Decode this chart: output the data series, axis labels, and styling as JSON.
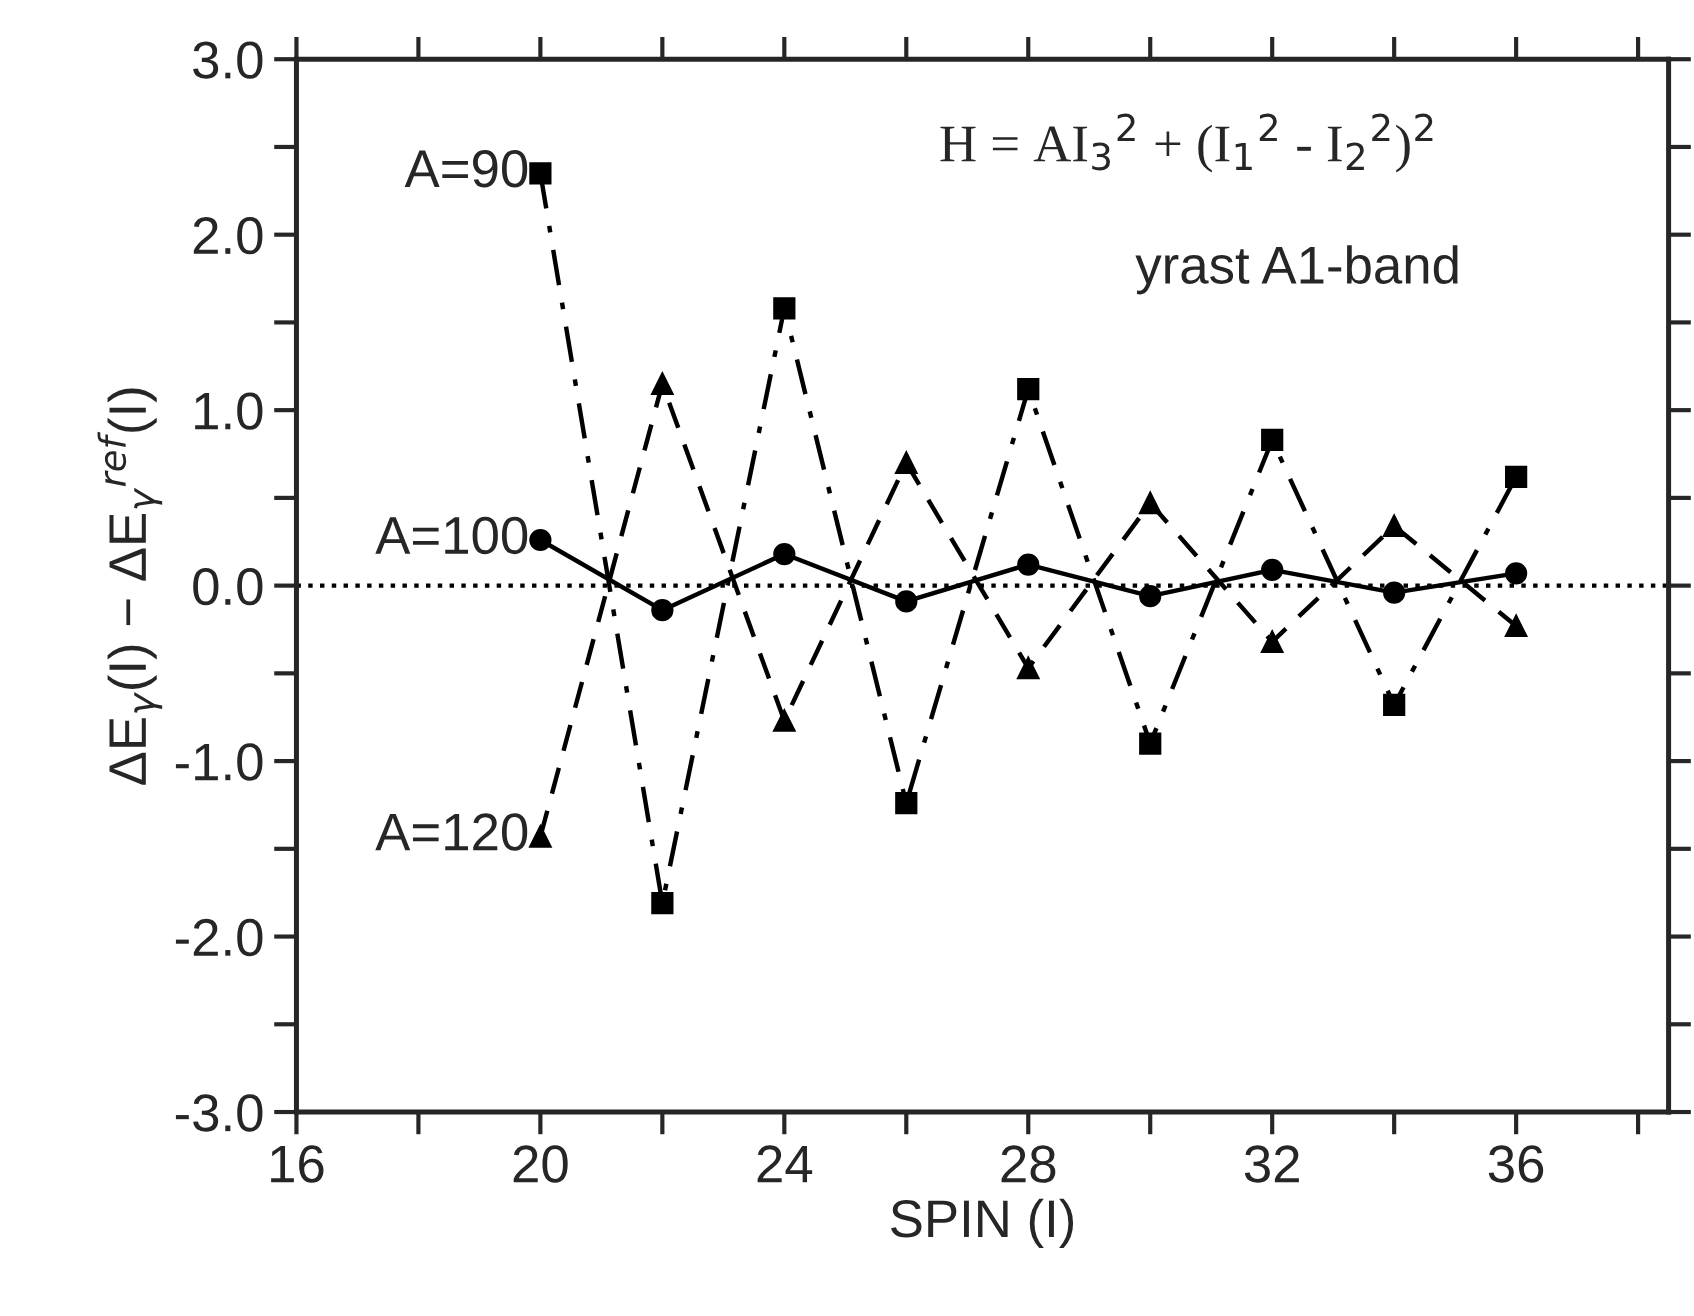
{
  "chart_data": {
    "type": "line",
    "xlabel": "SPIN (I)",
    "ylabel": "ΔE$_{γ}$(I) − ΔE$_{γ}$$^{ref}$(I)",
    "annotations": [
      "H = AI$_{3}$$^{2}$ + (I$_{1}$$^{2}$ - I$_{2}$$^{2}$)$^{2}$",
      "yrast A1-band"
    ],
    "x": [
      20,
      22,
      24,
      26,
      28,
      30,
      32,
      34,
      36
    ],
    "series": [
      {
        "name": "A=90",
        "color": "#000000",
        "marker": "square",
        "line_style": "dashdot",
        "values": [
          2.35,
          -1.81,
          1.58,
          -1.24,
          1.12,
          -0.9,
          0.83,
          -0.68,
          0.62
        ]
      },
      {
        "name": "A=100",
        "color": "#000000",
        "marker": "circle",
        "line_style": "solid",
        "values": [
          0.26,
          -0.14,
          0.18,
          -0.09,
          0.12,
          -0.06,
          0.09,
          -0.04,
          0.07
        ]
      },
      {
        "name": "A=120",
        "color": "#000000",
        "marker": "triangle",
        "line_style": "dashed",
        "values": [
          -1.43,
          1.15,
          -0.77,
          0.7,
          -0.47,
          0.47,
          -0.32,
          0.34,
          -0.23
        ]
      }
    ],
    "ref_lines": [
      {
        "axis": "y",
        "value": 0,
        "color": "#000000",
        "line_style": "dotted"
      }
    ],
    "xlim": [
      16,
      38.5
    ],
    "xticks": [
      16,
      {
        "value": 18,
        "label": null
      },
      20,
      {
        "value": 22,
        "label": null
      },
      24,
      {
        "value": 26,
        "label": null
      },
      28,
      {
        "value": 30,
        "label": null
      },
      32,
      {
        "value": 34,
        "label": null
      },
      36,
      {
        "value": 38,
        "label": null
      }
    ],
    "ylim": [
      -3.0,
      3.0
    ],
    "yticks": [
      {
        "value": -3.0,
        "label": "-3.0"
      },
      {
        "value": -2.5,
        "label": null
      },
      {
        "value": -2.0,
        "label": "-2.0"
      },
      {
        "value": -1.5,
        "label": null
      },
      {
        "value": -1.0,
        "label": "-1.0"
      },
      {
        "value": -0.5,
        "label": null
      },
      {
        "value": 0,
        "label": "0.0"
      },
      {
        "value": 0.5,
        "label": null
      },
      {
        "value": 1.0,
        "label": "1.0"
      },
      {
        "value": 1.5,
        "label": null
      },
      {
        "value": 2.0,
        "label": "2.0"
      },
      {
        "value": 2.5,
        "label": null
      },
      {
        "value": 3.0,
        "label": "3.0"
      }
    ],
    "grid": false,
    "legend": false
  }
}
